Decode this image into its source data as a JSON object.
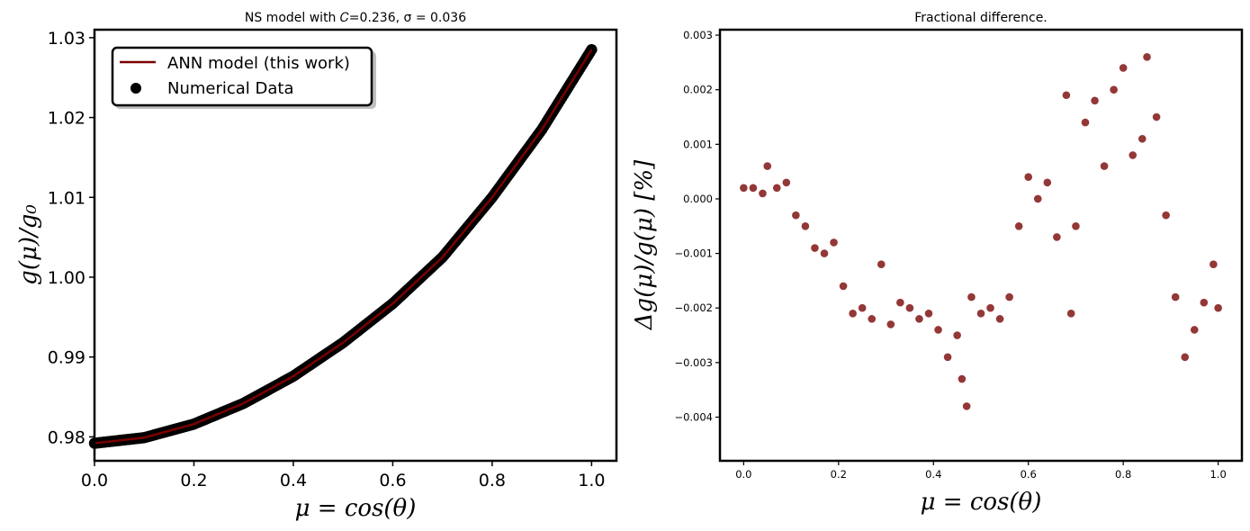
{
  "colors": {
    "series": "#7a0000",
    "markers": "#000000",
    "scatter": "#7b0b0b",
    "frame": "#000000"
  },
  "chart_data": [
    {
      "type": "line",
      "title": "NS model with 𝐶=0.236, σ = 0.036",
      "xlabel": "μ = cos(θ)",
      "ylabel": "g(μ)/g₀",
      "xlim": [
        0.0,
        1.05
      ],
      "ylim": [
        0.977,
        1.031
      ],
      "xticks": [
        "0.0",
        "0.2",
        "0.4",
        "0.6",
        "0.8",
        "1.0"
      ],
      "yticks": [
        "0.98",
        "0.99",
        "1.00",
        "1.01",
        "1.02",
        "1.03"
      ],
      "grid": false,
      "legend_position": "top-left",
      "legend": [
        "ANN model (this work)",
        "Numerical Data"
      ],
      "series": [
        {
          "name": "ANN model (this work)",
          "kind": "line",
          "x": [
            0.0,
            0.1,
            0.2,
            0.3,
            0.4,
            0.5,
            0.6,
            0.7,
            0.8,
            0.9,
            1.0
          ],
          "y": [
            0.9792,
            0.9799,
            0.9816,
            0.9842,
            0.9876,
            0.9918,
            0.9967,
            1.0025,
            1.01,
            1.0185,
            1.0285
          ]
        },
        {
          "name": "Numerical Data",
          "kind": "scatter",
          "x": [
            0.0,
            0.1,
            0.2,
            0.3,
            0.4,
            0.5,
            0.6,
            0.7,
            0.8,
            0.9,
            1.0
          ],
          "y": [
            0.9792,
            0.9799,
            0.9816,
            0.9842,
            0.9876,
            0.9918,
            0.9967,
            1.0025,
            1.01,
            1.0185,
            1.0285
          ]
        }
      ]
    },
    {
      "type": "scatter",
      "title": "Fractional difference.",
      "xlabel": "μ = cos(θ)",
      "ylabel": "Δg(μ)/g(μ)  [%]",
      "xlim": [
        -0.05,
        1.05
      ],
      "ylim": [
        -0.0048,
        0.0031
      ],
      "xticks": [
        "0.0",
        "0.2",
        "0.4",
        "0.6",
        "0.8",
        "1.0"
      ],
      "yticks": [
        "−0.004",
        "−0.003",
        "−0.002",
        "−0.001",
        "0.000",
        "0.001",
        "0.002",
        "0.003"
      ],
      "grid": false,
      "series": [
        {
          "kind": "scatter",
          "x": [
            0.0,
            0.02,
            0.04,
            0.05,
            0.07,
            0.09,
            0.11,
            0.13,
            0.15,
            0.17,
            0.19,
            0.21,
            0.23,
            0.25,
            0.27,
            0.29,
            0.31,
            0.33,
            0.35,
            0.37,
            0.39,
            0.41,
            0.43,
            0.45,
            0.46,
            0.47,
            0.48,
            0.5,
            0.52,
            0.54,
            0.56,
            0.58,
            0.6,
            0.62,
            0.64,
            0.66,
            0.68,
            0.69,
            0.7,
            0.72,
            0.74,
            0.76,
            0.78,
            0.8,
            0.82,
            0.84,
            0.85,
            0.87,
            0.89,
            0.91,
            0.93,
            0.95,
            0.97,
            0.99,
            1.0
          ],
          "y": [
            0.0002,
            0.0002,
            0.0001,
            0.0006,
            0.0002,
            0.0003,
            -0.0003,
            -0.0005,
            -0.0009,
            -0.001,
            -0.0008,
            -0.0016,
            -0.0021,
            -0.002,
            -0.0022,
            -0.0012,
            -0.0023,
            -0.0019,
            -0.002,
            -0.0022,
            -0.0021,
            -0.0024,
            -0.0029,
            -0.0025,
            -0.0033,
            -0.0038,
            -0.0018,
            -0.0021,
            -0.002,
            -0.0022,
            -0.0018,
            -0.0005,
            0.0004,
            0.0,
            0.0003,
            -0.0007,
            0.0019,
            -0.0021,
            -0.0005,
            0.0014,
            0.0018,
            0.0006,
            0.002,
            0.0024,
            0.0008,
            0.0011,
            0.0026,
            0.0015,
            -0.0003,
            -0.0018,
            -0.0029,
            -0.0024,
            -0.0019,
            -0.0012,
            -0.002
          ]
        }
      ]
    }
  ]
}
